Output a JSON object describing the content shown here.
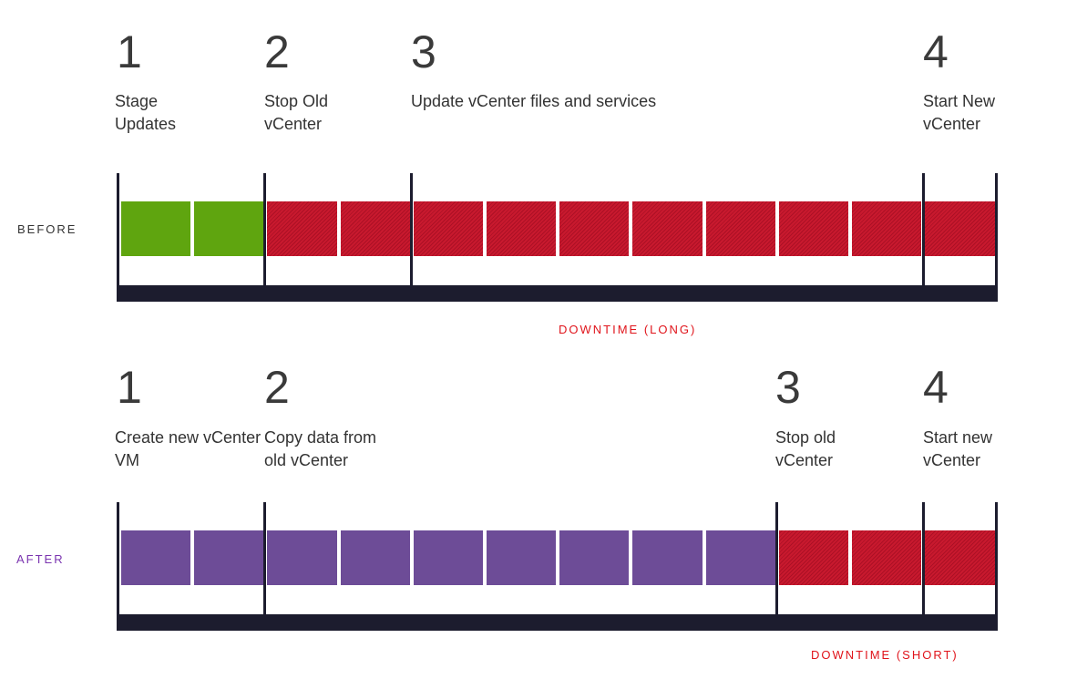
{
  "before": {
    "side_label": "BEFORE",
    "side_color": "#333333",
    "steps": [
      {
        "number": "1",
        "lines": [
          "Stage",
          "Updates"
        ]
      },
      {
        "number": "2",
        "lines": [
          "Stop Old",
          "vCenter"
        ]
      },
      {
        "number": "3",
        "lines": [
          "Update vCenter files and services"
        ]
      },
      {
        "number": "4",
        "lines": [
          "Start New",
          "vCenter"
        ]
      }
    ],
    "segments": [
      "green",
      "green",
      "red",
      "red",
      "red",
      "red",
      "red",
      "red",
      "red",
      "red",
      "red",
      "red"
    ],
    "downtime_label": "DOWNTIME (LONG)"
  },
  "after": {
    "side_label": "AFTER",
    "side_color": "#7b35b0",
    "steps": [
      {
        "number": "1",
        "lines": [
          "Create new vCenter",
          "VM"
        ]
      },
      {
        "number": "2",
        "lines": [
          "Copy data from",
          "old vCenter"
        ]
      },
      {
        "number": "3",
        "lines": [
          "Stop old",
          "vCenter"
        ]
      },
      {
        "number": "4",
        "lines": [
          "Start new",
          "vCenter"
        ]
      }
    ],
    "segments": [
      "purple",
      "purple",
      "purple",
      "purple",
      "purple",
      "purple",
      "purple",
      "purple",
      "purple",
      "red",
      "red",
      "red"
    ],
    "downtime_label": "DOWNTIME (SHORT)"
  },
  "colors": {
    "green": "#5fa50f",
    "purple": "#6d4c97",
    "red": "#c8192e",
    "downtime_text": "#e0141b",
    "axis": "#1c1c2e"
  }
}
